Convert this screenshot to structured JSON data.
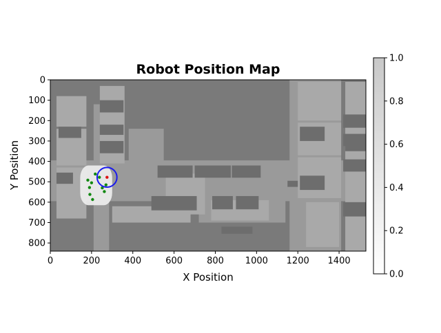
{
  "chart_data": {
    "type": "heatmap",
    "title": "Robot Position Map",
    "xlabel": "X Position",
    "ylabel": "Y Position",
    "xlim": [
      0,
      1530
    ],
    "ylim": [
      840,
      0
    ],
    "xticks": [
      0,
      200,
      400,
      600,
      800,
      1000,
      1200,
      1400
    ],
    "yticks": [
      0,
      100,
      200,
      300,
      400,
      500,
      600,
      700,
      800
    ],
    "grid": false,
    "colorbar": {
      "range": [
        0.0,
        1.0
      ],
      "ticks": [
        "0.0",
        "0.2",
        "0.4",
        "0.6",
        "0.8",
        "1.0"
      ],
      "colors": [
        "#ffffff",
        "#c8c8c8"
      ]
    },
    "map_colors": {
      "wall": "#7a7a7a",
      "floor": "#9a9a9a",
      "room": "#a9a9a9",
      "block": "#6d6d6d",
      "explored": "#eeeeee"
    },
    "robot": {
      "x": 275,
      "y": 478,
      "circle_radius": 48,
      "circle_color": "#1a1aee",
      "marker_color": "#dd1111"
    },
    "trajectory": {
      "color": "#118811",
      "points": [
        [
          218,
          462
        ],
        [
          238,
          478
        ],
        [
          182,
          492
        ],
        [
          200,
          505
        ],
        [
          190,
          528
        ],
        [
          192,
          562
        ],
        [
          205,
          587
        ],
        [
          252,
          530
        ],
        [
          270,
          515
        ],
        [
          262,
          548
        ]
      ]
    },
    "explored_region": {
      "x": [
        145,
        300
      ],
      "y": [
        420,
        615
      ]
    }
  }
}
